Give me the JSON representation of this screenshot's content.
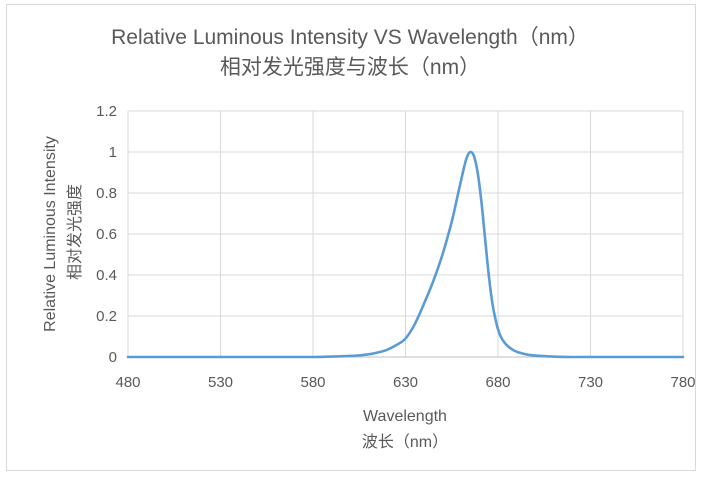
{
  "chart_data": {
    "type": "line",
    "title": "Relative Luminous Intensity VS Wavelength（nm）",
    "subtitle": "相对发光强度与波长（nm）",
    "xlabel": "Wavelength",
    "xlabel_cn": "波长（nm）",
    "ylabel": "Relative Luminous Intensity",
    "ylabel_cn": "相对发光强度",
    "xlim": [
      480,
      780
    ],
    "ylim": [
      0,
      1.2
    ],
    "xticks": [
      480,
      530,
      580,
      630,
      680,
      730,
      780
    ],
    "yticks": [
      0,
      0.2,
      0.4,
      0.6,
      0.8,
      1,
      1.2
    ],
    "grid": true,
    "legend": false,
    "series": [
      {
        "color": "#5b9bd5",
        "x": [
          480,
          500,
          520,
          540,
          560,
          580,
          590,
          600,
          605,
          610,
          615,
          620,
          625,
          630,
          635,
          640,
          645,
          650,
          655,
          658,
          661,
          663,
          665,
          667,
          669,
          671,
          673,
          675,
          677,
          679,
          681,
          684,
          688,
          692,
          697,
          703,
          710,
          720,
          740,
          760,
          780
        ],
        "y": [
          0,
          0,
          0,
          0,
          0,
          0,
          0.002,
          0.005,
          0.008,
          0.013,
          0.022,
          0.035,
          0.058,
          0.09,
          0.16,
          0.26,
          0.37,
          0.5,
          0.66,
          0.78,
          0.9,
          0.97,
          1.0,
          0.98,
          0.9,
          0.76,
          0.58,
          0.4,
          0.26,
          0.17,
          0.11,
          0.065,
          0.035,
          0.02,
          0.01,
          0.005,
          0.002,
          0,
          0,
          0,
          0
        ]
      }
    ]
  },
  "colors": {
    "text": "#595959",
    "grid": "#d9d9d9",
    "axis": "#bfbfbf",
    "frame": "#d9d9d9"
  }
}
